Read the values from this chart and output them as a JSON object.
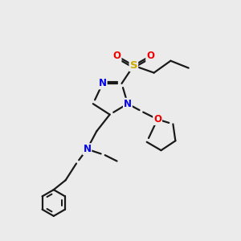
{
  "bg_color": "#ebebeb",
  "line_color": "#1a1a1a",
  "bond_width": 1.6,
  "atom_colors": {
    "N": "#0000ee",
    "O": "#ee0000",
    "S": "#ccaa00"
  },
  "figsize": [
    3.0,
    3.0
  ],
  "dpi": 100
}
